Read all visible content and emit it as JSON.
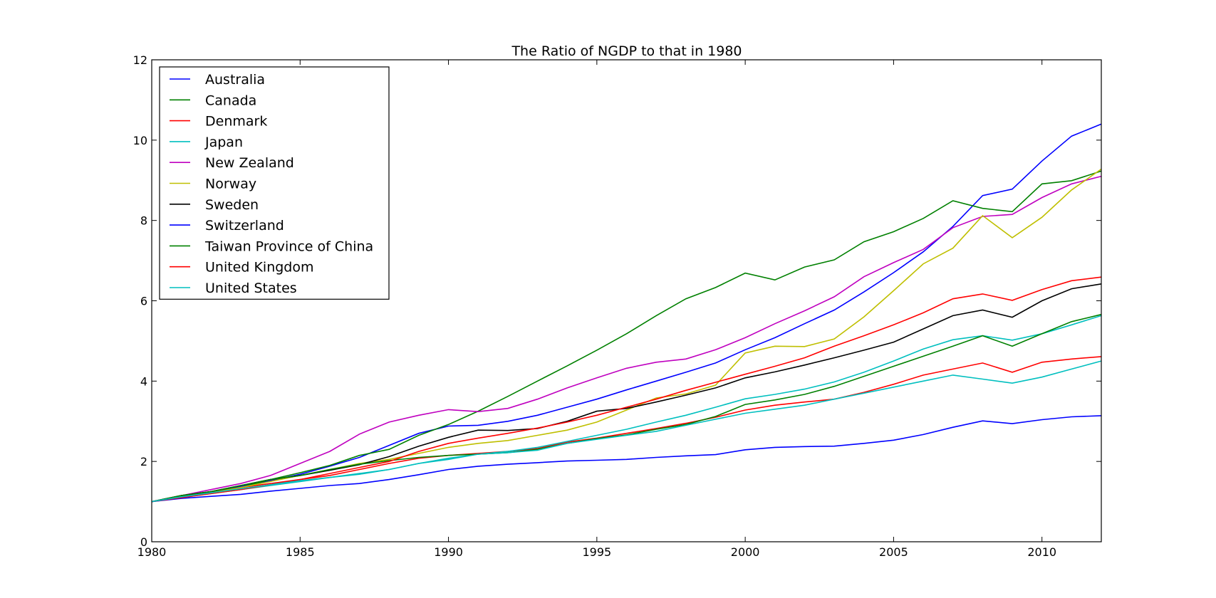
{
  "chart_data": {
    "type": "line",
    "title": "The Ratio of NGDP to that in 1980",
    "xlabel": "",
    "ylabel": "",
    "xlim": [
      1980,
      2012
    ],
    "ylim": [
      0,
      12
    ],
    "xticks": [
      1980,
      1985,
      1990,
      1995,
      2000,
      2005,
      2010
    ],
    "yticks": [
      0,
      2,
      4,
      6,
      8,
      10,
      12
    ],
    "grid": false,
    "legend_position": "top-left",
    "x": [
      1980,
      1981,
      1982,
      1983,
      1984,
      1985,
      1986,
      1987,
      1988,
      1989,
      1990,
      1991,
      1992,
      1993,
      1994,
      1995,
      1996,
      1997,
      1998,
      1999,
      2000,
      2001,
      2002,
      2003,
      2004,
      2005,
      2006,
      2007,
      2008,
      2009,
      2010,
      2011,
      2012
    ],
    "series": [
      {
        "name": "Australia",
        "color": "#0000ff",
        "values": [
          1.0,
          1.12,
          1.25,
          1.38,
          1.52,
          1.68,
          1.88,
          2.1,
          2.4,
          2.7,
          2.88,
          2.9,
          3.0,
          3.15,
          3.35,
          3.55,
          3.78,
          4.0,
          4.22,
          4.45,
          4.78,
          5.08,
          5.43,
          5.77,
          6.22,
          6.7,
          7.22,
          7.85,
          8.62,
          8.78,
          9.48,
          10.1,
          10.4
        ]
      },
      {
        "name": "Canada",
        "color": "#008000",
        "values": [
          1.0,
          1.15,
          1.25,
          1.35,
          1.55,
          1.72,
          1.9,
          2.15,
          2.3,
          2.65,
          2.92,
          3.25,
          3.62,
          4.0,
          4.38,
          4.77,
          5.18,
          5.63,
          6.05,
          6.33,
          6.69,
          6.52,
          6.84,
          7.02,
          7.47,
          7.72,
          8.05,
          8.49,
          8.3,
          8.22,
          8.91,
          8.99,
          9.23
        ]
      },
      {
        "name": "Denmark",
        "color": "#ff0000",
        "values": [
          1.0,
          1.12,
          1.22,
          1.35,
          1.45,
          1.55,
          1.65,
          1.8,
          1.95,
          2.08,
          2.15,
          2.2,
          2.25,
          2.32,
          2.48,
          2.58,
          2.7,
          2.82,
          2.95,
          3.1,
          3.28,
          3.4,
          3.48,
          3.55,
          3.72,
          3.92,
          4.15,
          4.3,
          4.45,
          4.22,
          4.47,
          4.55,
          4.61
        ]
      },
      {
        "name": "Japan",
        "color": "#00bfbf",
        "values": [
          1.0,
          1.1,
          1.2,
          1.3,
          1.4,
          1.5,
          1.6,
          1.7,
          1.8,
          1.95,
          2.08,
          2.18,
          2.25,
          2.35,
          2.5,
          2.65,
          2.8,
          2.98,
          3.15,
          3.35,
          3.56,
          3.67,
          3.8,
          3.98,
          4.22,
          4.5,
          4.8,
          5.03,
          5.13,
          5.02,
          5.18,
          5.4,
          5.63
        ]
      },
      {
        "name": "New Zealand",
        "color": "#bf00bf",
        "values": [
          1.0,
          1.15,
          1.3,
          1.45,
          1.65,
          1.95,
          2.25,
          2.68,
          2.98,
          3.15,
          3.29,
          3.24,
          3.32,
          3.55,
          3.83,
          4.08,
          4.32,
          4.47,
          4.55,
          4.78,
          5.08,
          5.43,
          5.75,
          6.1,
          6.6,
          6.95,
          7.28,
          7.82,
          8.1,
          8.15,
          8.57,
          8.91,
          9.1
        ]
      },
      {
        "name": "Norway",
        "color": "#bfbf00",
        "values": [
          1.0,
          1.12,
          1.22,
          1.35,
          1.5,
          1.65,
          1.8,
          1.95,
          2.05,
          2.2,
          2.35,
          2.45,
          2.52,
          2.65,
          2.78,
          2.98,
          3.28,
          3.58,
          3.68,
          3.9,
          4.7,
          4.87,
          4.86,
          5.05,
          5.6,
          6.25,
          6.92,
          7.31,
          8.12,
          7.57,
          8.08,
          8.76,
          9.28
        ]
      },
      {
        "name": "Sweden",
        "color": "#000000",
        "values": [
          1.0,
          1.15,
          1.25,
          1.4,
          1.55,
          1.65,
          1.78,
          1.92,
          2.12,
          2.38,
          2.6,
          2.78,
          2.77,
          2.82,
          3.0,
          3.25,
          3.32,
          3.48,
          3.65,
          3.83,
          4.08,
          4.23,
          4.4,
          4.58,
          4.77,
          4.97,
          5.3,
          5.63,
          5.77,
          5.59,
          6.0,
          6.3,
          6.42
        ]
      },
      {
        "name": "Switzerland",
        "color": "#0000ff",
        "values": [
          1.0,
          1.08,
          1.13,
          1.18,
          1.26,
          1.33,
          1.4,
          1.45,
          1.55,
          1.67,
          1.8,
          1.88,
          1.93,
          1.97,
          2.01,
          2.03,
          2.05,
          2.1,
          2.14,
          2.17,
          2.29,
          2.35,
          2.37,
          2.38,
          2.45,
          2.53,
          2.67,
          2.85,
          3.01,
          2.94,
          3.04,
          3.11,
          3.14
        ]
      },
      {
        "name": "Taiwan Province of China",
        "color": "#008000",
        "values": [
          1.0,
          1.15,
          1.25,
          1.4,
          1.55,
          1.65,
          1.8,
          1.93,
          2.02,
          2.1,
          2.15,
          2.18,
          2.22,
          2.3,
          2.45,
          2.57,
          2.66,
          2.8,
          2.92,
          3.12,
          3.42,
          3.53,
          3.67,
          3.87,
          4.12,
          4.37,
          4.62,
          4.87,
          5.13,
          4.87,
          5.18,
          5.48,
          5.66
        ]
      },
      {
        "name": "United Kingdom",
        "color": "#ff0000",
        "values": [
          1.0,
          1.1,
          1.2,
          1.3,
          1.42,
          1.55,
          1.7,
          1.85,
          2.0,
          2.25,
          2.45,
          2.58,
          2.7,
          2.83,
          2.98,
          3.15,
          3.35,
          3.55,
          3.77,
          3.97,
          4.17,
          4.37,
          4.58,
          4.87,
          5.13,
          5.4,
          5.7,
          6.05,
          6.17,
          6.01,
          6.28,
          6.5,
          6.59
        ]
      },
      {
        "name": "United States",
        "color": "#00bfbf",
        "values": [
          1.0,
          1.12,
          1.22,
          1.32,
          1.42,
          1.52,
          1.6,
          1.68,
          1.8,
          1.95,
          2.05,
          2.18,
          2.22,
          2.28,
          2.45,
          2.55,
          2.65,
          2.75,
          2.9,
          3.05,
          3.2,
          3.3,
          3.4,
          3.55,
          3.7,
          3.85,
          4.0,
          4.15,
          4.05,
          3.95,
          4.1,
          4.3,
          4.5
        ]
      }
    ]
  }
}
